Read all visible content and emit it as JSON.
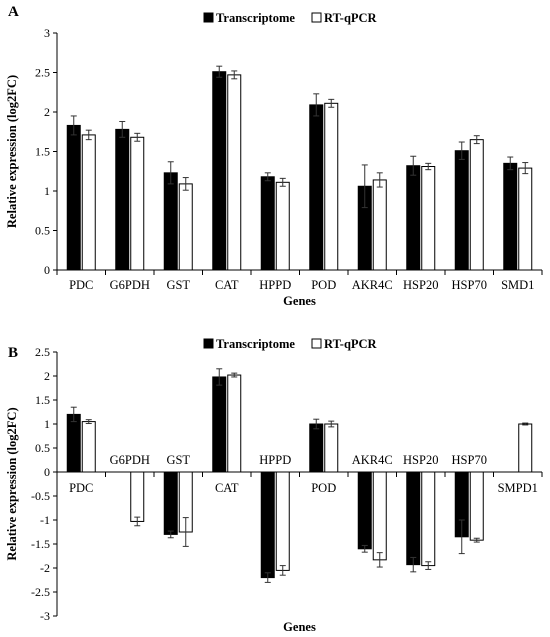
{
  "chart_data": [
    {
      "panel": "A",
      "type": "bar",
      "xlabel": "Genes",
      "ylabel": "Relative expression  (log2FC)",
      "ylim": [
        0,
        3
      ],
      "y_ticks": [
        0,
        0.5,
        1,
        1.5,
        2,
        2.5,
        3
      ],
      "y_tick_labels": [
        "0",
        "0.5",
        "1",
        "1.5",
        "2",
        "2.5",
        "3"
      ],
      "legend_position": "top-center",
      "grid": false,
      "categories": [
        "PDC",
        "G6PDH",
        "GST",
        "CAT",
        "HPPD",
        "POD",
        "AKR4C",
        "HSP20",
        "HSP70",
        "SMD1"
      ],
      "series": [
        {
          "name": "Transcriptome",
          "color": "#000000",
          "values": [
            1.83,
            1.78,
            1.23,
            2.51,
            1.18,
            2.09,
            1.06,
            1.32,
            1.51,
            1.35
          ],
          "errors": [
            0.12,
            0.1,
            0.14,
            0.07,
            0.05,
            0.14,
            0.27,
            0.12,
            0.11,
            0.08
          ]
        },
        {
          "name": "RT-qPCR",
          "color": "#ffffff",
          "values": [
            1.71,
            1.68,
            1.09,
            2.47,
            1.11,
            2.11,
            1.14,
            1.31,
            1.65,
            1.29
          ],
          "errors": [
            0.06,
            0.05,
            0.08,
            0.05,
            0.05,
            0.05,
            0.09,
            0.04,
            0.05,
            0.07
          ]
        }
      ]
    },
    {
      "panel": "B",
      "type": "bar",
      "xlabel": "Genes",
      "ylabel": "Relative expression  (log2FC)",
      "ylim": [
        -3,
        2.5
      ],
      "y_ticks": [
        -3,
        -2.5,
        -2,
        -1.5,
        -1,
        -0.5,
        0,
        0.5,
        1,
        1.5,
        2,
        2.5
      ],
      "y_tick_labels": [
        "-3",
        "-2.5",
        "-2",
        "-1.5",
        "-1",
        "-0.5",
        "0",
        "0.5",
        "1",
        "1.5",
        "2",
        "2.5"
      ],
      "legend_position": "top-center",
      "grid": false,
      "categories": [
        "PDC",
        "G6PDH",
        "GST",
        "CAT",
        "HPPD",
        "POD",
        "AKR4C",
        "HSP20",
        "HSP70",
        "SMPD1"
      ],
      "series": [
        {
          "name": "Transcriptome",
          "color": "#000000",
          "values": [
            1.2,
            null,
            -1.3,
            1.98,
            -2.2,
            1.0,
            -1.6,
            -1.93,
            -1.35,
            null
          ],
          "errors": [
            0.15,
            null,
            0.07,
            0.17,
            0.1,
            0.1,
            0.07,
            0.15,
            0.35,
            null
          ]
        },
        {
          "name": "RT-qPCR",
          "color": "#ffffff",
          "values": [
            1.05,
            -1.03,
            -1.25,
            2.02,
            -2.05,
            1.0,
            -1.83,
            -1.95,
            -1.42,
            1.0
          ],
          "errors": [
            0.04,
            0.09,
            0.3,
            0.04,
            0.1,
            0.06,
            0.15,
            0.08,
            0.04,
            0.02
          ]
        }
      ]
    }
  ]
}
